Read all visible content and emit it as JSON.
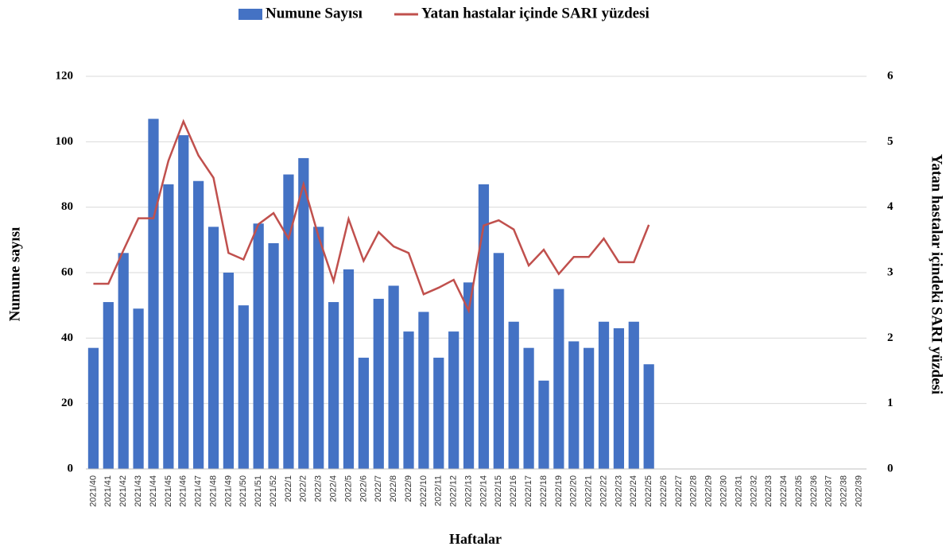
{
  "chart_data": {
    "type": "bar-line",
    "x_label": "Haftalar",
    "y_label": "Numune sayısı",
    "y2_label": "Yatan hastalar içindeki SARI yüzdesi",
    "categories": [
      "2021/40",
      "2021/41",
      "2021/42",
      "2021/43",
      "2021/44",
      "2021/45",
      "2021/46",
      "2021/47",
      "2021/48",
      "2021/49",
      "2021/50",
      "2021/51",
      "2021/52",
      "2022/1",
      "2022/2",
      "2022/3",
      "2022/4",
      "2022/5",
      "2022/6",
      "2022/7",
      "2022/8",
      "2022/9",
      "2022/10",
      "2022/11",
      "2022/12",
      "2022/13",
      "2022/14",
      "2022/15",
      "2022/16",
      "2022/17",
      "2022/18",
      "2022/19",
      "2022/20",
      "2022/21",
      "2022/22",
      "2022/23",
      "2022/24",
      "2022/25",
      "2022/26",
      "2022/27",
      "2022/28",
      "2022/29",
      "2022/30",
      "2022/31",
      "2022/32",
      "2022/33",
      "2022/34",
      "2022/35",
      "2022/36",
      "2022/37",
      "2022/38",
      "2022/39"
    ],
    "series": [
      {
        "name": "Numune Sayısı",
        "type": "bar",
        "color": "#4472c4",
        "values": [
          37,
          51,
          66,
          49,
          107,
          87,
          102,
          88,
          74,
          60,
          50,
          75,
          69,
          90,
          95,
          74,
          51,
          61,
          34,
          52,
          56,
          42,
          48,
          34,
          42,
          57,
          87,
          66,
          45,
          37,
          27,
          55,
          39,
          37,
          45,
          43,
          45,
          32,
          null,
          null,
          null,
          null,
          null,
          null,
          null,
          null,
          null,
          null,
          null,
          null,
          null,
          null
        ]
      },
      {
        "name": "Yatan hastalar içinde SARI yüzdesi",
        "type": "line",
        "axis": "y2",
        "color": "#c0504d",
        "values": [
          2.83,
          2.83,
          3.34,
          3.83,
          3.83,
          4.71,
          5.31,
          4.79,
          4.45,
          3.3,
          3.2,
          3.74,
          3.91,
          3.52,
          4.35,
          3.55,
          2.87,
          3.82,
          3.18,
          3.62,
          3.4,
          3.3,
          2.67,
          2.77,
          2.89,
          2.42,
          3.72,
          3.8,
          3.66,
          3.11,
          3.35,
          2.98,
          3.24,
          3.24,
          3.52,
          3.16,
          3.16,
          3.73,
          null,
          null,
          null,
          null,
          null,
          null,
          null,
          null,
          null,
          null,
          null,
          null,
          null,
          null
        ]
      }
    ],
    "ylim": [
      0,
      120
    ],
    "yticks": [
      0,
      20,
      40,
      60,
      80,
      100,
      120
    ],
    "y2lim": [
      0,
      6
    ],
    "y2ticks": [
      0,
      1,
      2,
      3,
      4,
      5,
      6
    ],
    "grid": true,
    "legend": "top"
  }
}
